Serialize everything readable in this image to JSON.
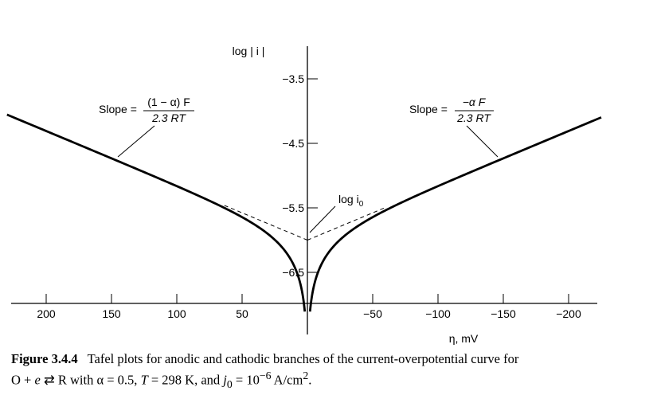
{
  "chart_data": {
    "type": "line",
    "ylabel": "log | i |",
    "xlabel": "η, mV",
    "x_ticks": [
      200,
      150,
      100,
      50,
      -50,
      -100,
      -150,
      -200
    ],
    "x_tick_labels": [
      "200",
      "150",
      "100",
      "50",
      "−50",
      "−100",
      "−150",
      "−200"
    ],
    "y_ticks": [
      -3.5,
      -4.5,
      -5.5,
      -6.5
    ],
    "y_tick_labels": [
      "−3.5",
      "−4.5",
      "−5.5",
      "−6.5"
    ],
    "xlim": [
      225,
      -225
    ],
    "ylim": [
      -7.1,
      -2.95
    ],
    "x_reversed": true,
    "alpha": 0.5,
    "T": 298,
    "log_i0": -6,
    "log_i0_label": "log i",
    "log_i0_label_sub": "0",
    "series": [
      {
        "branch": "anodic",
        "x_from": 2,
        "x_to": 230
      },
      {
        "branch": "cathodic",
        "x_from": -2,
        "x_to": -225
      }
    ],
    "asymptotes": [
      {
        "x_from": 0,
        "x_to": 65
      },
      {
        "x_from": 0,
        "x_to": -60
      }
    ],
    "annotations": {
      "anodic_slope": {
        "prefix": "Slope =",
        "numerator": "(1 − α) F",
        "denominator": "2.3 RT"
      },
      "cathodic_slope": {
        "prefix": "Slope =",
        "numerator": "−α F",
        "denominator": "2.3 RT"
      }
    }
  },
  "caption": {
    "figure_label": "Figure 3.4.4",
    "line1": "Tafel plots for anodic and cathodic branches of the current-overpotential curve for",
    "line2_a": "O + ",
    "line2_e": "e",
    "line2_arrow": " ⇄ ",
    "line2_b": "R with α = 0.5, ",
    "line2_T": "T",
    "line2_c": " = 298 K, and ",
    "line2_j": "j",
    "line2_sub": "0",
    "line2_d": " = 10",
    "line2_sup": "−6",
    "line2_e2": " A/cm",
    "line2_sup2": "2",
    "line2_f": "."
  }
}
